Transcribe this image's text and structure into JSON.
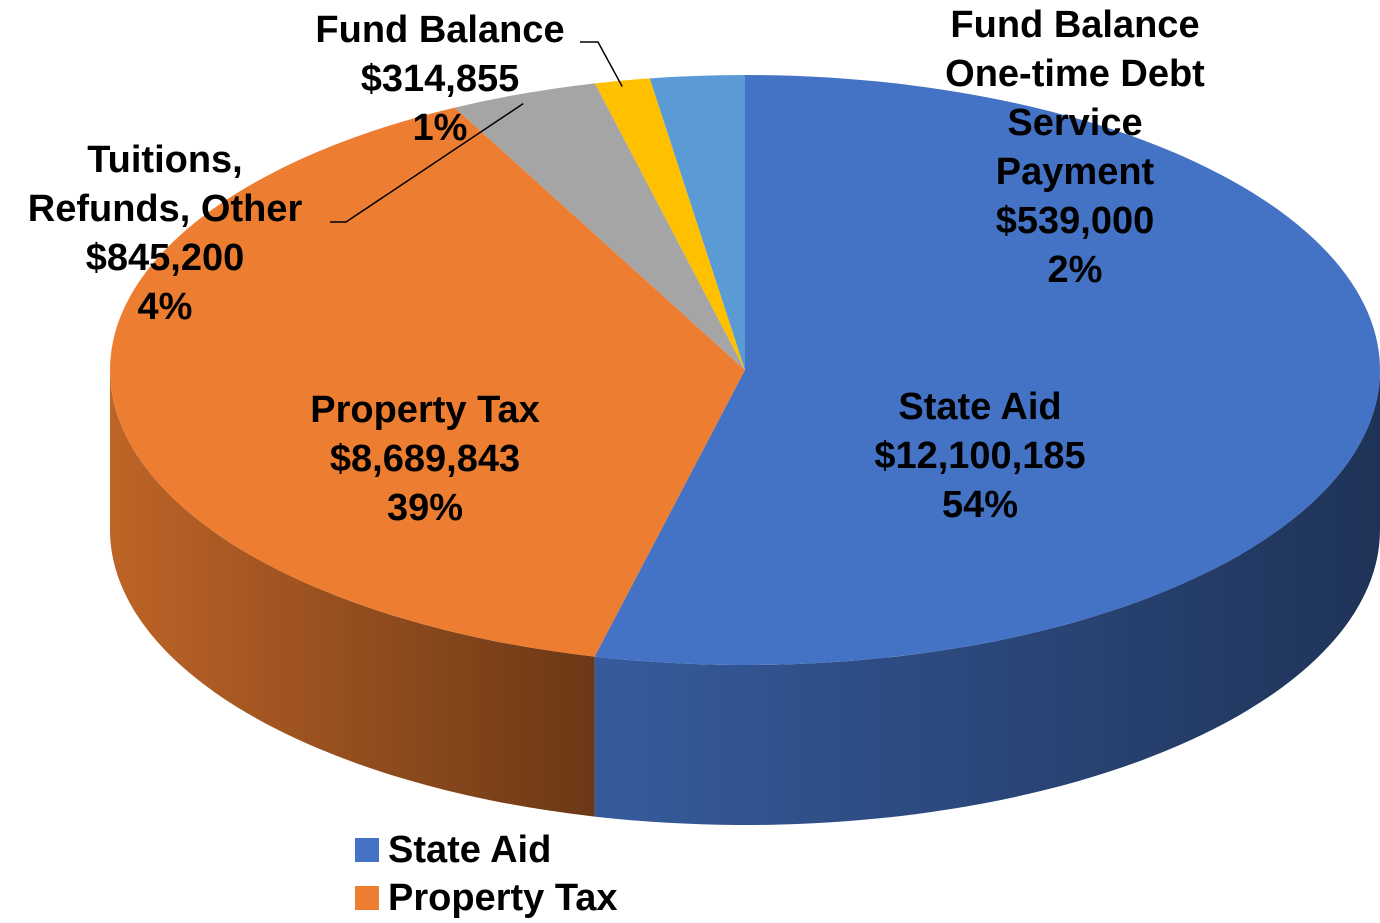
{
  "chart_data": {
    "type": "pie3d",
    "categories": [
      "State Aid",
      "Property Tax",
      "Tuitions, Refunds, Other",
      "Fund Balance",
      "Fund Balance One-time Debt Service Payment"
    ],
    "values": [
      12100185,
      8689843,
      845200,
      314855,
      539000
    ],
    "value_labels": [
      "$12,100,185",
      "$8,689,843",
      "$845,200",
      "$314,855",
      "$539,000"
    ],
    "percents": [
      54,
      39,
      4,
      1,
      2
    ],
    "percent_labels": [
      "54%",
      "39%",
      "4%",
      "1%",
      "2%"
    ],
    "colors": [
      "#4472c4",
      "#ed7d31",
      "#a5a5a5",
      "#ffc000",
      "#5b9bd5"
    ],
    "legend": "bottom"
  }
}
